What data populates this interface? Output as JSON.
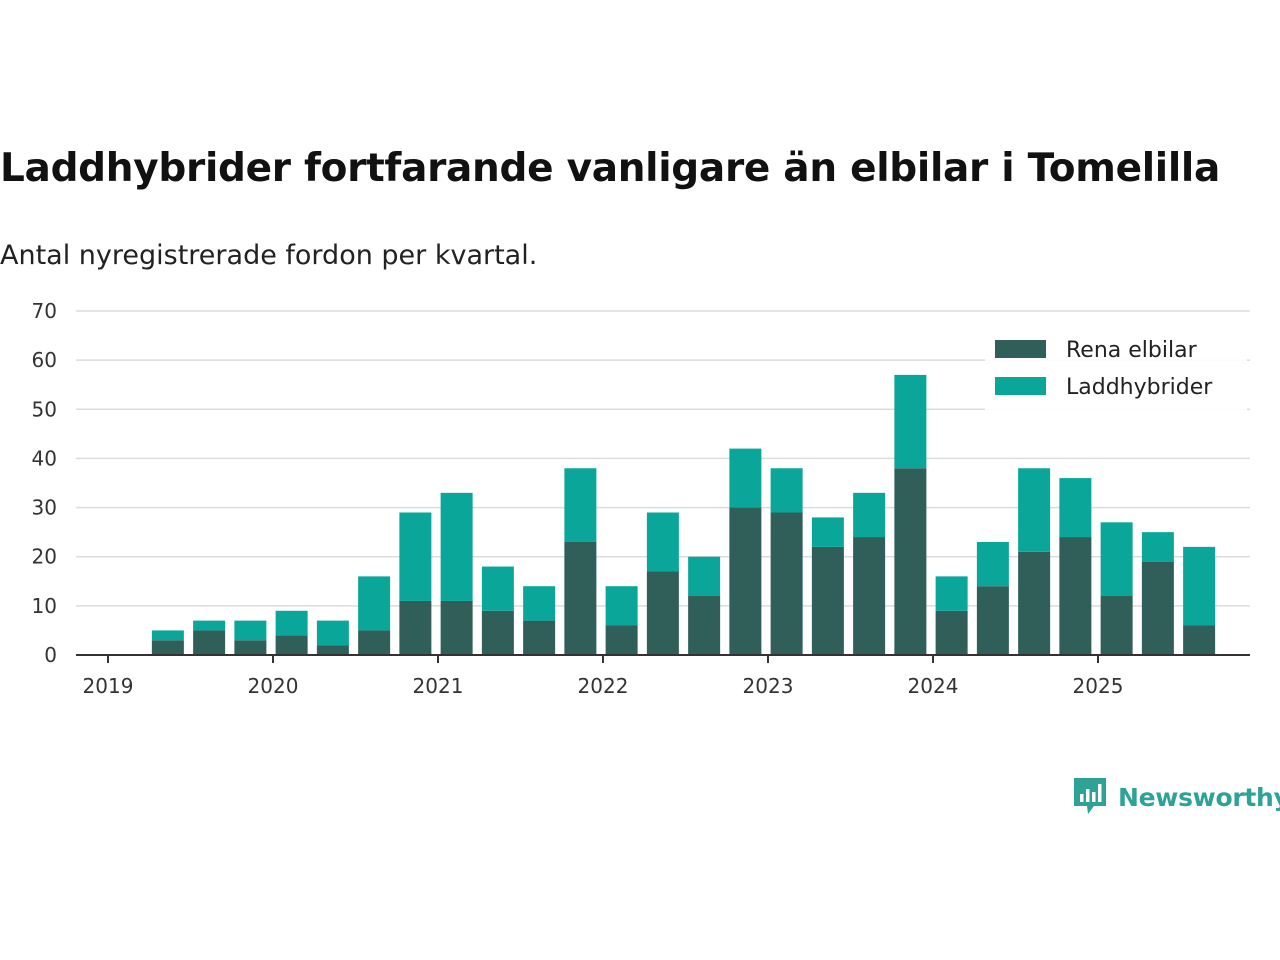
{
  "title": "Laddhybrider fortfarande vanligare än elbilar i Tomelilla",
  "subtitle": "Antal nyregistrerade fordon per kvartal.",
  "brand": "Newsworthy",
  "colors": {
    "elbilar": "#2f5f58",
    "laddhybrider": "#0aa69a",
    "brand": "#2fa296"
  },
  "chart_data": {
    "type": "bar",
    "stacked": true,
    "categories": [
      "2019 Q2",
      "2019 Q3",
      "2019 Q4",
      "2020 Q1",
      "2020 Q2",
      "2020 Q3",
      "2020 Q4",
      "2021 Q1",
      "2021 Q2",
      "2021 Q3",
      "2021 Q4",
      "2022 Q1",
      "2022 Q2",
      "2022 Q3",
      "2022 Q4",
      "2023 Q1",
      "2023 Q2",
      "2023 Q3",
      "2023 Q4",
      "2024 Q1",
      "2024 Q2",
      "2024 Q3",
      "2024 Q4",
      "2025 Q1",
      "2025 Q2",
      "2025 Q3"
    ],
    "series": [
      {
        "name": "Rena elbilar",
        "values": [
          3,
          5,
          3,
          4,
          2,
          5,
          11,
          11,
          9,
          7,
          23,
          6,
          17,
          12,
          30,
          29,
          22,
          24,
          38,
          9,
          14,
          21,
          24,
          12,
          19,
          6
        ]
      },
      {
        "name": "Laddhybrider",
        "values": [
          2,
          2,
          4,
          5,
          5,
          11,
          18,
          22,
          9,
          7,
          15,
          8,
          12,
          8,
          12,
          9,
          6,
          9,
          19,
          7,
          9,
          17,
          12,
          15,
          6,
          16
        ]
      }
    ],
    "x_tick_labels": [
      "2019",
      "2020",
      "2021",
      "2022",
      "2023",
      "2024",
      "2025"
    ],
    "y_ticks": [
      0,
      10,
      20,
      30,
      40,
      50,
      60,
      70
    ],
    "ylim": [
      0,
      70
    ],
    "legend_position": "top-right",
    "xlabel": "",
    "ylabel": ""
  }
}
